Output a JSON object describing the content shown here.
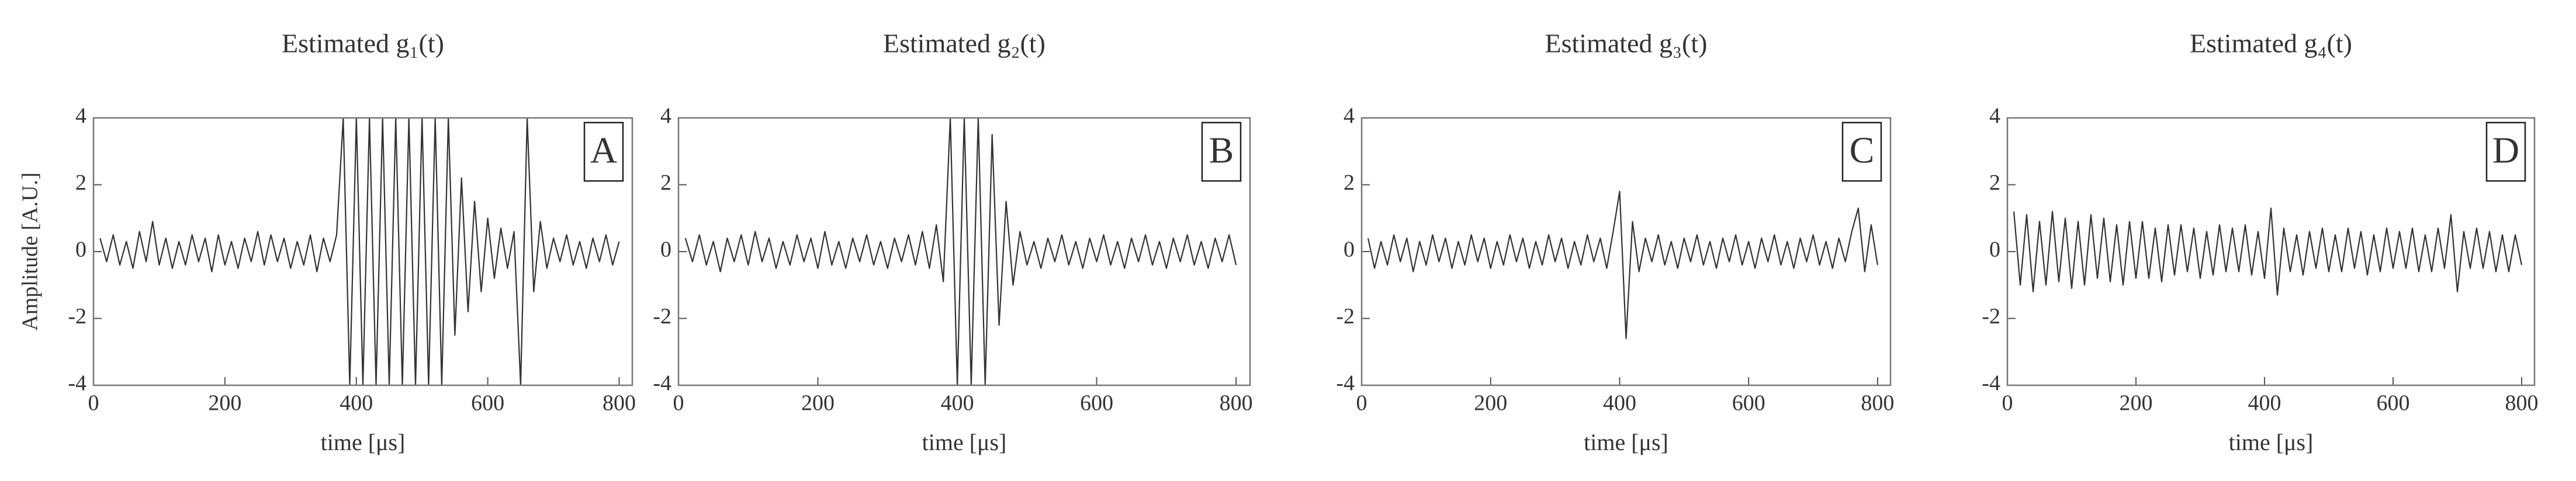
{
  "chart_data": [
    {
      "type": "line",
      "title": "Estimated g₁(t)",
      "xlabel": "time [μs]",
      "ylabel": "Amplitude [A.U.]",
      "panel_label": "A",
      "xlim": [
        0,
        820
      ],
      "ylim": [
        -4,
        4
      ],
      "xticks": [
        0,
        200,
        400,
        600,
        800
      ],
      "yticks": [
        -4,
        -2,
        0,
        2,
        4
      ],
      "x": [
        10,
        20,
        30,
        40,
        50,
        60,
        70,
        80,
        90,
        100,
        110,
        120,
        130,
        140,
        150,
        160,
        170,
        180,
        190,
        200,
        210,
        220,
        230,
        240,
        250,
        260,
        270,
        280,
        290,
        300,
        310,
        320,
        330,
        340,
        350,
        360,
        370,
        380,
        390,
        400,
        410,
        420,
        430,
        440,
        450,
        460,
        470,
        480,
        490,
        500,
        510,
        520,
        530,
        540,
        550,
        560,
        570,
        580,
        590,
        600,
        610,
        620,
        630,
        640,
        650,
        660,
        670,
        680,
        690,
        700,
        710,
        720,
        730,
        740,
        750,
        760,
        770,
        780,
        790,
        800
      ],
      "series": [
        {
          "color": "#333333",
          "values": [
            0.4,
            -0.3,
            0.5,
            -0.4,
            0.3,
            -0.5,
            0.6,
            -0.3,
            0.9,
            -0.4,
            0.4,
            -0.5,
            0.3,
            -0.4,
            0.5,
            -0.3,
            0.4,
            -0.6,
            0.5,
            -0.4,
            0.3,
            -0.5,
            0.4,
            -0.3,
            0.6,
            -0.4,
            0.5,
            -0.3,
            0.4,
            -0.5,
            0.3,
            -0.4,
            0.5,
            -0.6,
            0.4,
            -0.3,
            0.5,
            4,
            -4,
            4,
            -4,
            4,
            -4,
            4,
            -4,
            4,
            -4,
            4,
            -4,
            4,
            -4,
            4,
            -4,
            4,
            -2.5,
            2.2,
            -1.8,
            1.5,
            -1.2,
            1.0,
            -0.8,
            0.7,
            -0.5,
            0.6,
            -4,
            4,
            -1.2,
            0.9,
            -0.5,
            0.4,
            -0.3,
            0.5,
            -0.4,
            0.3,
            -0.5,
            0.4,
            -0.3,
            0.5,
            -0.4,
            0.3
          ]
        }
      ]
    },
    {
      "type": "line",
      "title": "Estimated g₂(t)",
      "xlabel": "time [μs]",
      "panel_label": "B",
      "xlim": [
        0,
        820
      ],
      "ylim": [
        -4,
        4
      ],
      "xticks": [
        0,
        200,
        400,
        600,
        800
      ],
      "yticks": [
        -4,
        -2,
        0,
        2,
        4
      ],
      "x": [
        10,
        20,
        30,
        40,
        50,
        60,
        70,
        80,
        90,
        100,
        110,
        120,
        130,
        140,
        150,
        160,
        170,
        180,
        190,
        200,
        210,
        220,
        230,
        240,
        250,
        260,
        270,
        280,
        290,
        300,
        310,
        320,
        330,
        340,
        350,
        360,
        370,
        380,
        390,
        400,
        410,
        420,
        430,
        440,
        450,
        460,
        470,
        480,
        490,
        500,
        510,
        520,
        530,
        540,
        550,
        560,
        570,
        580,
        590,
        600,
        610,
        620,
        630,
        640,
        650,
        660,
        670,
        680,
        690,
        700,
        710,
        720,
        730,
        740,
        750,
        760,
        770,
        780,
        790,
        800
      ],
      "series": [
        {
          "color": "#333333",
          "values": [
            0.4,
            -0.3,
            0.5,
            -0.4,
            0.3,
            -0.6,
            0.4,
            -0.3,
            0.5,
            -0.4,
            0.6,
            -0.3,
            0.4,
            -0.5,
            0.3,
            -0.4,
            0.5,
            -0.3,
            0.4,
            -0.5,
            0.6,
            -0.4,
            0.3,
            -0.5,
            0.4,
            -0.3,
            0.5,
            -0.4,
            0.3,
            -0.5,
            0.4,
            -0.3,
            0.5,
            -0.4,
            0.6,
            -0.5,
            0.8,
            -0.9,
            4,
            -4,
            4,
            -4,
            4,
            -4,
            3.5,
            -2.2,
            1.5,
            -1.0,
            0.6,
            -0.4,
            0.3,
            -0.5,
            0.4,
            -0.3,
            0.5,
            -0.4,
            0.3,
            -0.5,
            0.4,
            -0.3,
            0.5,
            -0.4,
            0.3,
            -0.5,
            0.4,
            -0.3,
            0.5,
            -0.4,
            0.3,
            -0.5,
            0.4,
            -0.3,
            0.5,
            -0.4,
            0.3,
            -0.5,
            0.4,
            -0.3,
            0.5,
            -0.4
          ]
        }
      ]
    },
    {
      "type": "line",
      "title": "Estimated g₃(t)",
      "xlabel": "time [μs]",
      "panel_label": "C",
      "xlim": [
        0,
        820
      ],
      "ylim": [
        -4,
        4
      ],
      "xticks": [
        0,
        200,
        400,
        600,
        800
      ],
      "yticks": [
        -4,
        -2,
        0,
        2,
        4
      ],
      "x": [
        10,
        20,
        30,
        40,
        50,
        60,
        70,
        80,
        90,
        100,
        110,
        120,
        130,
        140,
        150,
        160,
        170,
        180,
        190,
        200,
        210,
        220,
        230,
        240,
        250,
        260,
        270,
        280,
        290,
        300,
        310,
        320,
        330,
        340,
        350,
        360,
        370,
        380,
        390,
        400,
        410,
        420,
        430,
        440,
        450,
        460,
        470,
        480,
        490,
        500,
        510,
        520,
        530,
        540,
        550,
        560,
        570,
        580,
        590,
        600,
        610,
        620,
        630,
        640,
        650,
        660,
        670,
        680,
        690,
        700,
        710,
        720,
        730,
        740,
        750,
        760,
        770,
        780,
        790,
        800
      ],
      "series": [
        {
          "color": "#333333",
          "values": [
            0.4,
            -0.5,
            0.3,
            -0.4,
            0.5,
            -0.3,
            0.4,
            -0.6,
            0.3,
            -0.4,
            0.5,
            -0.3,
            0.4,
            -0.5,
            0.3,
            -0.4,
            0.5,
            -0.3,
            0.4,
            -0.5,
            0.3,
            -0.4,
            0.5,
            -0.3,
            0.4,
            -0.5,
            0.3,
            -0.4,
            0.5,
            -0.3,
            0.4,
            -0.5,
            0.3,
            -0.4,
            0.5,
            -0.3,
            0.4,
            -0.5,
            0.6,
            1.8,
            -2.6,
            0.9,
            -0.6,
            0.4,
            -0.3,
            0.5,
            -0.4,
            0.3,
            -0.5,
            0.4,
            -0.3,
            0.5,
            -0.4,
            0.3,
            -0.5,
            0.4,
            -0.3,
            0.5,
            -0.4,
            0.3,
            -0.5,
            0.4,
            -0.3,
            0.5,
            -0.4,
            0.3,
            -0.5,
            0.4,
            -0.3,
            0.5,
            -0.4,
            0.3,
            -0.5,
            0.4,
            -0.3,
            0.6,
            1.3,
            -0.6,
            0.8,
            -0.4
          ]
        }
      ]
    },
    {
      "type": "line",
      "title": "Estimated g₄(t)",
      "xlabel": "time [μs]",
      "panel_label": "D",
      "xlim": [
        0,
        820
      ],
      "ylim": [
        -4,
        4
      ],
      "xticks": [
        0,
        200,
        400,
        600,
        800
      ],
      "yticks": [
        -4,
        -2,
        0,
        2,
        4
      ],
      "x": [
        10,
        20,
        30,
        40,
        50,
        60,
        70,
        80,
        90,
        100,
        110,
        120,
        130,
        140,
        150,
        160,
        170,
        180,
        190,
        200,
        210,
        220,
        230,
        240,
        250,
        260,
        270,
        280,
        290,
        300,
        310,
        320,
        330,
        340,
        350,
        360,
        370,
        380,
        390,
        400,
        410,
        420,
        430,
        440,
        450,
        460,
        470,
        480,
        490,
        500,
        510,
        520,
        530,
        540,
        550,
        560,
        570,
        580,
        590,
        600,
        610,
        620,
        630,
        640,
        650,
        660,
        670,
        680,
        690,
        700,
        710,
        720,
        730,
        740,
        750,
        760,
        770,
        780,
        790,
        800
      ],
      "series": [
        {
          "color": "#333333",
          "values": [
            1.2,
            -1.0,
            1.1,
            -1.2,
            0.9,
            -1.0,
            1.2,
            -0.9,
            1.0,
            -1.1,
            0.9,
            -1.0,
            1.1,
            -0.8,
            1.0,
            -0.9,
            0.8,
            -1.0,
            0.9,
            -0.8,
            0.9,
            -0.8,
            0.7,
            -0.9,
            0.8,
            -0.7,
            0.8,
            -0.6,
            0.7,
            -0.8,
            0.6,
            -0.7,
            0.8,
            -0.6,
            0.7,
            -0.6,
            0.8,
            -0.7,
            0.6,
            -0.8,
            1.3,
            -1.3,
            0.7,
            -0.6,
            0.5,
            -0.7,
            0.6,
            -0.5,
            0.7,
            -0.6,
            0.5,
            -0.6,
            0.7,
            -0.5,
            0.6,
            -0.7,
            0.5,
            -0.6,
            0.7,
            -0.5,
            0.6,
            -0.5,
            0.7,
            -0.6,
            0.5,
            -0.6,
            0.7,
            -0.5,
            1.1,
            -1.2,
            0.6,
            -0.5,
            0.7,
            -0.5,
            0.6,
            -0.6,
            0.5,
            -0.6,
            0.5,
            -0.4
          ]
        }
      ]
    }
  ]
}
